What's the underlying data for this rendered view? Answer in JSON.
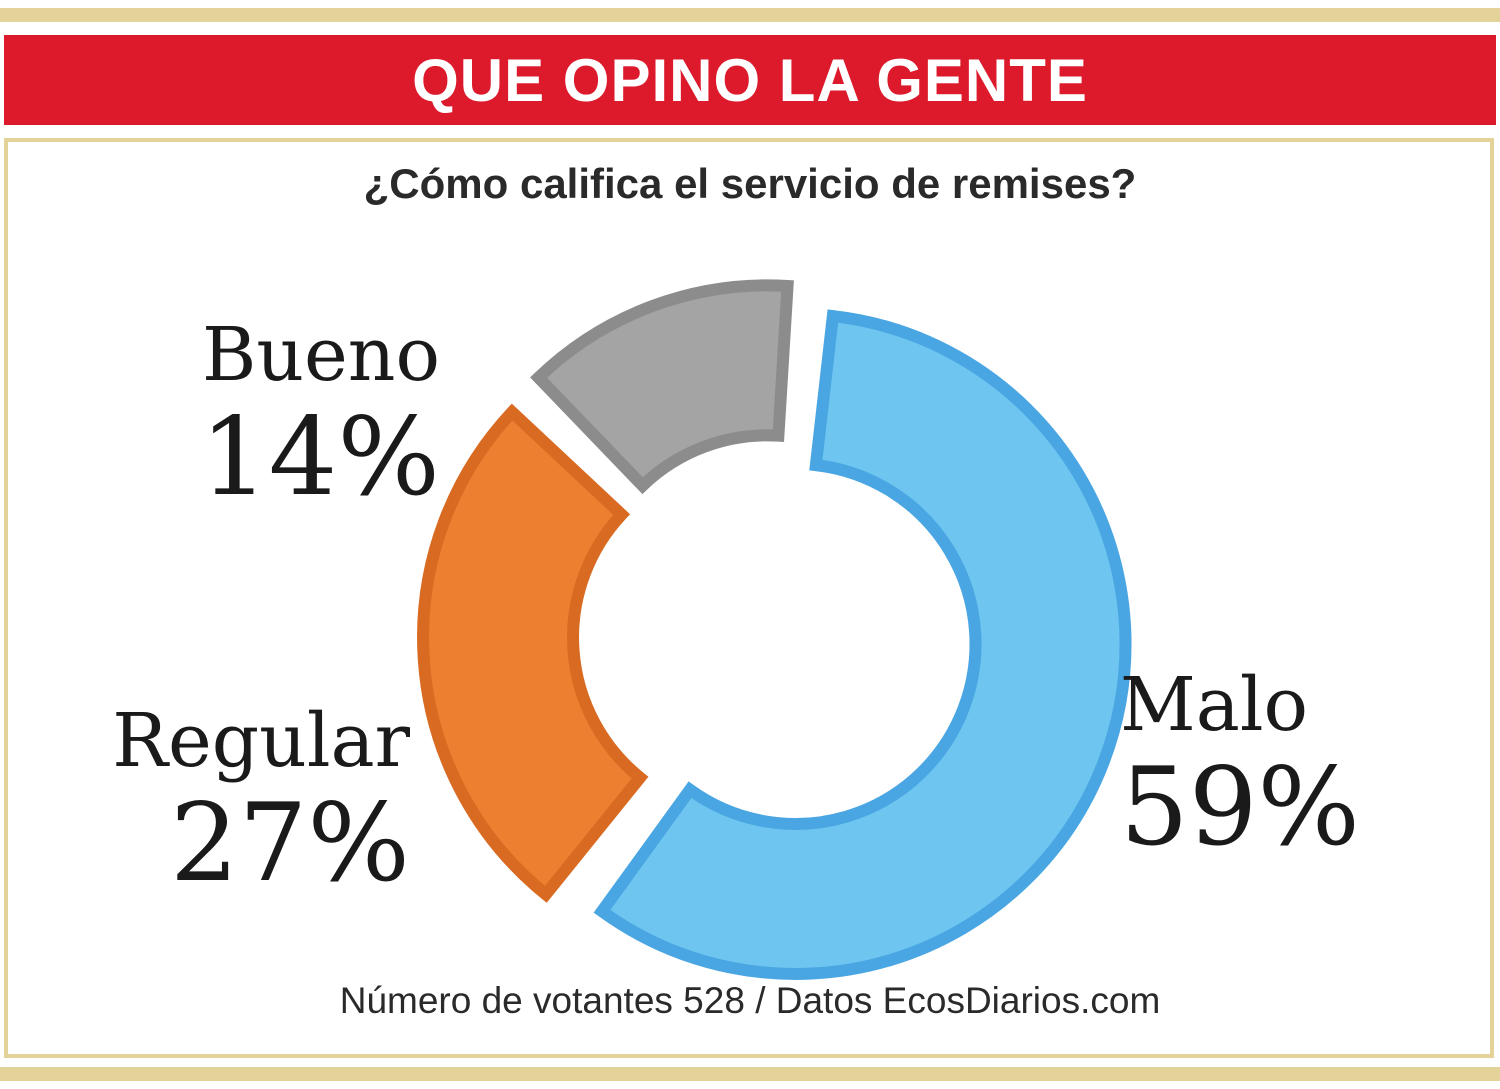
{
  "header": {
    "title": "QUE OPINO LA GENTE"
  },
  "question": "¿Cómo califica el servicio de remises?",
  "footer": "Número de votantes 528 / Datos EcosDiarios.com",
  "colors": {
    "header_bg": "#dc1a2c",
    "frame": "#e3d398",
    "malo_fill": "#6ec6f0",
    "malo_stroke": "#4aa6e2",
    "regular_fill": "#ec7f30",
    "regular_stroke": "#d86a22",
    "bueno_fill": "#a4a4a4",
    "bueno_stroke": "#8c8c8c"
  },
  "chart_data": {
    "type": "pie",
    "style": "donut-exploded",
    "title": "¿Cómo califica el servicio de remises?",
    "slices": [
      {
        "label": "Malo",
        "value": 59,
        "display": "59%",
        "color": "#6ec6f0",
        "stroke": "#4aa6e2"
      },
      {
        "label": "Regular",
        "value": 27,
        "display": "27%",
        "color": "#ec7f30",
        "stroke": "#d86a22"
      },
      {
        "label": "Bueno",
        "value": 14,
        "display": "14%",
        "color": "#a4a4a4",
        "stroke": "#8c8c8c"
      }
    ],
    "legend": "none"
  }
}
